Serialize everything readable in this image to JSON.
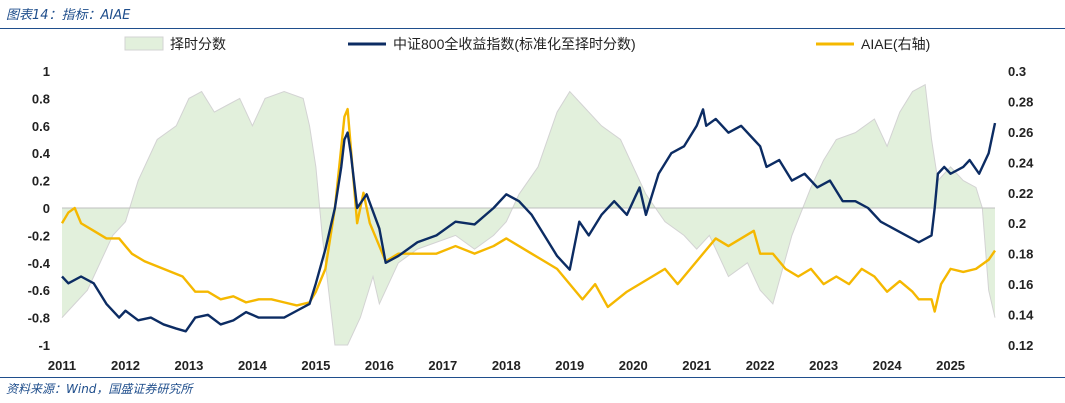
{
  "header": {
    "title": "图表14：指标：AIAE"
  },
  "footer": {
    "source": "资料来源：Wind，国盛证券研究所"
  },
  "colors": {
    "signal": "#e2f0dc",
    "signal_line": "#d3d3d3",
    "index": "#0c2c63",
    "aiae": "#f5b800",
    "rule": "#1f4e8c",
    "text": "#222222"
  },
  "chart_data": {
    "type": "line",
    "title": "",
    "legend_position": "top",
    "grid": false,
    "x_range": [
      2011,
      2025.7
    ],
    "x_ticks": [
      "2011",
      "2012",
      "2013",
      "2014",
      "2015",
      "2016",
      "2017",
      "2018",
      "2019",
      "2020",
      "2021",
      "2022",
      "2023",
      "2024",
      "2025"
    ],
    "y_left": {
      "range": [
        -1,
        1
      ],
      "ticks": [
        "1",
        "0.8",
        "0.6",
        "0.4",
        "0.2",
        "0",
        "-0.2",
        "-0.4",
        "-0.6",
        "-0.8",
        "-1"
      ]
    },
    "y_right": {
      "range": [
        0.12,
        0.3
      ],
      "ticks": [
        "0.3",
        "0.28",
        "0.26",
        "0.24",
        "0.22",
        "0.2",
        "0.18",
        "0.16",
        "0.14",
        "0.12"
      ]
    },
    "series": [
      {
        "name": "择时分数",
        "type": "area",
        "axis": "left",
        "x": [
          2011.0,
          2011.2,
          2011.4,
          2011.6,
          2011.8,
          2012.0,
          2012.2,
          2012.5,
          2012.8,
          2013.0,
          2013.2,
          2013.4,
          2013.6,
          2013.8,
          2014.0,
          2014.2,
          2014.5,
          2014.8,
          2014.9,
          2015.0,
          2015.1,
          2015.3,
          2015.5,
          2015.7,
          2015.9,
          2016.0,
          2016.1,
          2016.3,
          2016.6,
          2016.9,
          2017.2,
          2017.5,
          2017.8,
          2018.0,
          2018.2,
          2018.5,
          2018.8,
          2019.0,
          2019.2,
          2019.5,
          2019.8,
          2020.0,
          2020.2,
          2020.5,
          2020.8,
          2021.0,
          2021.2,
          2021.5,
          2021.8,
          2022.0,
          2022.2,
          2022.5,
          2022.8,
          2023.0,
          2023.2,
          2023.5,
          2023.8,
          2024.0,
          2024.2,
          2024.4,
          2024.6,
          2024.7,
          2024.8,
          2025.0,
          2025.2,
          2025.4,
          2025.5,
          2025.6,
          2025.7
        ],
        "values": [
          -0.8,
          -0.7,
          -0.6,
          -0.4,
          -0.2,
          -0.1,
          0.2,
          0.5,
          0.6,
          0.8,
          0.85,
          0.7,
          0.75,
          0.8,
          0.6,
          0.8,
          0.85,
          0.8,
          0.6,
          0.3,
          -0.2,
          -1.0,
          -1.0,
          -0.8,
          -0.5,
          -0.7,
          -0.6,
          -0.4,
          -0.3,
          -0.25,
          -0.2,
          -0.3,
          -0.2,
          -0.1,
          0.1,
          0.3,
          0.7,
          0.85,
          0.75,
          0.6,
          0.5,
          0.3,
          0.1,
          -0.1,
          -0.2,
          -0.3,
          -0.2,
          -0.5,
          -0.4,
          -0.6,
          -0.7,
          -0.2,
          0.15,
          0.35,
          0.5,
          0.55,
          0.65,
          0.45,
          0.7,
          0.85,
          0.9,
          0.5,
          0.2,
          0.3,
          0.2,
          0.15,
          0.0,
          -0.6,
          -0.8
        ]
      },
      {
        "name": "中证800全收益指数(标准化至择时分数)",
        "type": "line",
        "axis": "left",
        "x": [
          2011.0,
          2011.1,
          2011.3,
          2011.5,
          2011.7,
          2011.9,
          2012.0,
          2012.2,
          2012.4,
          2012.6,
          2012.8,
          2012.95,
          2013.1,
          2013.3,
          2013.5,
          2013.7,
          2013.9,
          2014.1,
          2014.3,
          2014.5,
          2014.7,
          2014.9,
          2015.0,
          2015.15,
          2015.3,
          2015.4,
          2015.45,
          2015.5,
          2015.55,
          2015.65,
          2015.8,
          2016.0,
          2016.1,
          2016.3,
          2016.6,
          2016.9,
          2017.2,
          2017.5,
          2017.8,
          2018.0,
          2018.2,
          2018.4,
          2018.6,
          2018.8,
          2019.0,
          2019.15,
          2019.3,
          2019.5,
          2019.7,
          2019.9,
          2020.1,
          2020.2,
          2020.4,
          2020.6,
          2020.8,
          2021.0,
          2021.1,
          2021.15,
          2021.3,
          2021.5,
          2021.7,
          2021.9,
          2022.0,
          2022.1,
          2022.3,
          2022.5,
          2022.7,
          2022.9,
          2023.1,
          2023.3,
          2023.5,
          2023.7,
          2023.9,
          2024.1,
          2024.3,
          2024.5,
          2024.7,
          2024.75,
          2024.8,
          2024.9,
          2025.0,
          2025.2,
          2025.3,
          2025.45,
          2025.6,
          2025.7
        ],
        "values": [
          -0.5,
          -0.55,
          -0.5,
          -0.55,
          -0.7,
          -0.8,
          -0.75,
          -0.82,
          -0.8,
          -0.85,
          -0.88,
          -0.9,
          -0.8,
          -0.78,
          -0.85,
          -0.82,
          -0.76,
          -0.8,
          -0.8,
          -0.8,
          -0.75,
          -0.7,
          -0.55,
          -0.3,
          0.0,
          0.3,
          0.5,
          0.55,
          0.4,
          0.0,
          0.1,
          -0.15,
          -0.4,
          -0.35,
          -0.25,
          -0.2,
          -0.1,
          -0.12,
          0.0,
          0.1,
          0.05,
          -0.05,
          -0.2,
          -0.35,
          -0.45,
          -0.1,
          -0.2,
          -0.05,
          0.05,
          -0.05,
          0.15,
          -0.05,
          0.25,
          0.4,
          0.45,
          0.6,
          0.72,
          0.6,
          0.65,
          0.55,
          0.6,
          0.5,
          0.45,
          0.3,
          0.35,
          0.2,
          0.25,
          0.15,
          0.2,
          0.05,
          0.05,
          0.0,
          -0.1,
          -0.15,
          -0.2,
          -0.25,
          -0.2,
          0.0,
          0.25,
          0.3,
          0.25,
          0.3,
          0.35,
          0.25,
          0.4,
          0.62
        ]
      },
      {
        "name": "AIAE(右轴)",
        "type": "line",
        "axis": "right",
        "x": [
          2011.0,
          2011.1,
          2011.2,
          2011.3,
          2011.5,
          2011.7,
          2011.9,
          2012.1,
          2012.3,
          2012.6,
          2012.9,
          2013.1,
          2013.3,
          2013.5,
          2013.7,
          2013.9,
          2014.1,
          2014.3,
          2014.5,
          2014.7,
          2014.9,
          2015.0,
          2015.15,
          2015.3,
          2015.4,
          2015.45,
          2015.5,
          2015.55,
          2015.65,
          2015.75,
          2015.85,
          2016.0,
          2016.1,
          2016.3,
          2016.6,
          2016.9,
          2017.2,
          2017.5,
          2017.8,
          2018.0,
          2018.2,
          2018.4,
          2018.6,
          2018.8,
          2019.0,
          2019.1,
          2019.2,
          2019.4,
          2019.6,
          2019.9,
          2020.1,
          2020.3,
          2020.5,
          2020.7,
          2020.9,
          2021.1,
          2021.3,
          2021.5,
          2021.7,
          2021.9,
          2022.0,
          2022.2,
          2022.4,
          2022.6,
          2022.8,
          2023.0,
          2023.2,
          2023.4,
          2023.6,
          2023.8,
          2024.0,
          2024.2,
          2024.4,
          2024.5,
          2024.7,
          2024.75,
          2024.85,
          2025.0,
          2025.2,
          2025.4,
          2025.6,
          2025.7
        ],
        "values": [
          0.2,
          0.207,
          0.21,
          0.2,
          0.195,
          0.19,
          0.19,
          0.18,
          0.175,
          0.17,
          0.165,
          0.155,
          0.155,
          0.15,
          0.152,
          0.148,
          0.15,
          0.15,
          0.148,
          0.146,
          0.148,
          0.155,
          0.17,
          0.21,
          0.25,
          0.27,
          0.275,
          0.25,
          0.2,
          0.22,
          0.2,
          0.185,
          0.175,
          0.18,
          0.18,
          0.18,
          0.185,
          0.18,
          0.185,
          0.19,
          0.185,
          0.18,
          0.175,
          0.17,
          0.16,
          0.155,
          0.15,
          0.16,
          0.145,
          0.155,
          0.16,
          0.165,
          0.17,
          0.16,
          0.17,
          0.18,
          0.19,
          0.185,
          0.19,
          0.195,
          0.18,
          0.18,
          0.17,
          0.165,
          0.17,
          0.16,
          0.165,
          0.16,
          0.17,
          0.165,
          0.155,
          0.162,
          0.155,
          0.15,
          0.15,
          0.142,
          0.16,
          0.17,
          0.168,
          0.17,
          0.176,
          0.182
        ]
      }
    ]
  }
}
